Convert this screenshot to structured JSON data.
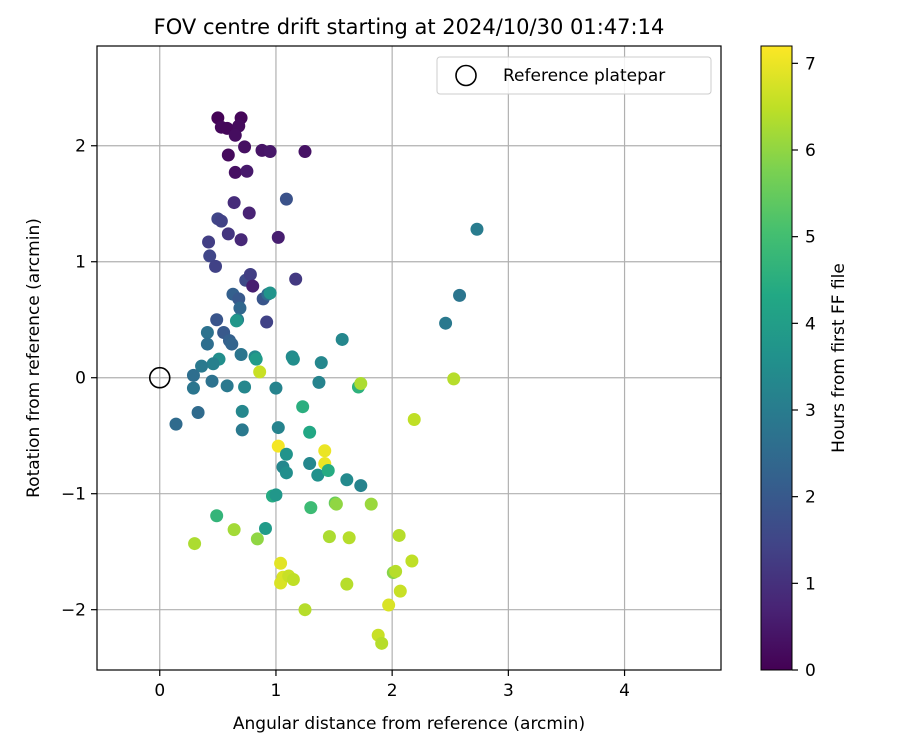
{
  "chart_data": {
    "type": "scatter",
    "title": "FOV centre drift starting at 2024/10/30 01:47:14",
    "xlabel": "Angular distance from reference (arcmin)",
    "ylabel": "Rotation from reference (arcmin)",
    "xlim": [
      -0.54,
      4.83
    ],
    "ylim": [
      -2.52,
      2.86
    ],
    "xticks": [
      0,
      1,
      2,
      3,
      4
    ],
    "yticks": [
      -2,
      -1,
      0,
      1,
      2
    ],
    "grid": true,
    "legend": {
      "position": "top-right",
      "entries": [
        "Reference platepar"
      ]
    },
    "reference_point": {
      "x": 0,
      "y": 0
    },
    "colorbar": {
      "label": "Hours from first FF file",
      "min": 0,
      "max": 7.2,
      "ticks": [
        0,
        1,
        2,
        3,
        4,
        5,
        6,
        7
      ],
      "colormap": "viridis"
    },
    "points": [
      {
        "x": 0.5,
        "y": 2.24,
        "c": 0.05
      },
      {
        "x": 0.7,
        "y": 2.24,
        "c": 0.1
      },
      {
        "x": 0.53,
        "y": 2.16,
        "c": 0.15
      },
      {
        "x": 0.58,
        "y": 2.15,
        "c": 0.12
      },
      {
        "x": 0.68,
        "y": 2.17,
        "c": 0.2
      },
      {
        "x": 0.65,
        "y": 2.09,
        "c": 0.25
      },
      {
        "x": 0.59,
        "y": 1.92,
        "c": 0.18
      },
      {
        "x": 0.73,
        "y": 1.99,
        "c": 0.3
      },
      {
        "x": 0.88,
        "y": 1.96,
        "c": 0.4
      },
      {
        "x": 0.95,
        "y": 1.95,
        "c": 0.45
      },
      {
        "x": 1.25,
        "y": 1.95,
        "c": 0.35
      },
      {
        "x": 0.65,
        "y": 1.77,
        "c": 0.3
      },
      {
        "x": 0.75,
        "y": 1.78,
        "c": 0.5
      },
      {
        "x": 0.64,
        "y": 1.51,
        "c": 0.9
      },
      {
        "x": 0.77,
        "y": 1.42,
        "c": 0.7
      },
      {
        "x": 1.09,
        "y": 1.54,
        "c": 1.8
      },
      {
        "x": 0.5,
        "y": 1.37,
        "c": 1.5
      },
      {
        "x": 0.53,
        "y": 1.35,
        "c": 1.4
      },
      {
        "x": 0.59,
        "y": 1.24,
        "c": 1.1
      },
      {
        "x": 0.7,
        "y": 1.19,
        "c": 0.8
      },
      {
        "x": 1.02,
        "y": 1.21,
        "c": 0.6
      },
      {
        "x": 0.42,
        "y": 1.17,
        "c": 1.3
      },
      {
        "x": 0.43,
        "y": 1.05,
        "c": 1.5
      },
      {
        "x": 0.48,
        "y": 0.96,
        "c": 1.4
      },
      {
        "x": 0.74,
        "y": 0.84,
        "c": 1.6
      },
      {
        "x": 0.78,
        "y": 0.89,
        "c": 1.3
      },
      {
        "x": 0.8,
        "y": 0.79,
        "c": 0.6
      },
      {
        "x": 1.17,
        "y": 0.85,
        "c": 1.2
      },
      {
        "x": 0.63,
        "y": 0.72,
        "c": 2.2
      },
      {
        "x": 0.68,
        "y": 0.68,
        "c": 2.0
      },
      {
        "x": 0.89,
        "y": 0.68,
        "c": 1.9
      },
      {
        "x": 0.93,
        "y": 0.72,
        "c": 2.5
      },
      {
        "x": 0.95,
        "y": 0.73,
        "c": 3.7
      },
      {
        "x": 0.69,
        "y": 0.6,
        "c": 2.4
      },
      {
        "x": 0.49,
        "y": 0.5,
        "c": 1.9
      },
      {
        "x": 0.67,
        "y": 0.5,
        "c": 3.0
      },
      {
        "x": 0.66,
        "y": 0.49,
        "c": 3.8
      },
      {
        "x": 0.92,
        "y": 0.48,
        "c": 1.4
      },
      {
        "x": 0.41,
        "y": 0.39,
        "c": 2.7
      },
      {
        "x": 0.55,
        "y": 0.39,
        "c": 2.0
      },
      {
        "x": 0.6,
        "y": 0.32,
        "c": 2.2
      },
      {
        "x": 0.62,
        "y": 0.29,
        "c": 2.3
      },
      {
        "x": 0.41,
        "y": 0.29,
        "c": 2.6
      },
      {
        "x": 0.7,
        "y": 0.2,
        "c": 2.8
      },
      {
        "x": 0.82,
        "y": 0.18,
        "c": 3.4
      },
      {
        "x": 0.83,
        "y": 0.16,
        "c": 3.9
      },
      {
        "x": 0.51,
        "y": 0.16,
        "c": 3.5
      },
      {
        "x": 0.46,
        "y": 0.12,
        "c": 3.1
      },
      {
        "x": 0.36,
        "y": 0.1,
        "c": 2.9
      },
      {
        "x": 0.29,
        "y": 0.02,
        "c": 2.6
      },
      {
        "x": 0.45,
        "y": -0.03,
        "c": 2.7
      },
      {
        "x": 0.58,
        "y": -0.07,
        "c": 2.9
      },
      {
        "x": 0.29,
        "y": -0.09,
        "c": 2.8
      },
      {
        "x": 0.86,
        "y": 0.05,
        "c": 6.6
      },
      {
        "x": 1.0,
        "y": -0.09,
        "c": 3.2
      },
      {
        "x": 0.73,
        "y": -0.08,
        "c": 3.3
      },
      {
        "x": 0.33,
        "y": -0.3,
        "c": 2.5
      },
      {
        "x": 0.14,
        "y": -0.4,
        "c": 2.5
      },
      {
        "x": 0.71,
        "y": -0.29,
        "c": 3.3
      },
      {
        "x": 0.71,
        "y": -0.45,
        "c": 2.9
      },
      {
        "x": 1.14,
        "y": 0.18,
        "c": 3.4
      },
      {
        "x": 1.15,
        "y": 0.16,
        "c": 3.5
      },
      {
        "x": 1.39,
        "y": 0.13,
        "c": 3.3
      },
      {
        "x": 1.57,
        "y": 0.33,
        "c": 3.3
      },
      {
        "x": 1.37,
        "y": -0.04,
        "c": 3.2
      },
      {
        "x": 1.71,
        "y": -0.08,
        "c": 4.6
      },
      {
        "x": 1.73,
        "y": -0.05,
        "c": 6.3
      },
      {
        "x": 1.23,
        "y": -0.25,
        "c": 4.5
      },
      {
        "x": 2.46,
        "y": 0.47,
        "c": 2.9
      },
      {
        "x": 2.58,
        "y": 0.71,
        "c": 2.8
      },
      {
        "x": 2.73,
        "y": 1.28,
        "c": 3.0
      },
      {
        "x": 2.53,
        "y": -0.01,
        "c": 6.4
      },
      {
        "x": 2.19,
        "y": -0.36,
        "c": 6.5
      },
      {
        "x": 1.02,
        "y": -0.43,
        "c": 3.2
      },
      {
        "x": 1.29,
        "y": -0.47,
        "c": 4.3
      },
      {
        "x": 1.02,
        "y": -0.59,
        "c": 7.1
      },
      {
        "x": 1.42,
        "y": -0.63,
        "c": 7.0
      },
      {
        "x": 1.42,
        "y": -0.74,
        "c": 7.0
      },
      {
        "x": 1.09,
        "y": -0.66,
        "c": 3.7
      },
      {
        "x": 1.06,
        "y": -0.77,
        "c": 3.3
      },
      {
        "x": 1.09,
        "y": -0.82,
        "c": 3.5
      },
      {
        "x": 1.29,
        "y": -0.74,
        "c": 3.3
      },
      {
        "x": 1.36,
        "y": -0.84,
        "c": 3.6
      },
      {
        "x": 1.45,
        "y": -0.8,
        "c": 4.4
      },
      {
        "x": 1.61,
        "y": -0.88,
        "c": 3.4
      },
      {
        "x": 1.73,
        "y": -0.93,
        "c": 3.2
      },
      {
        "x": 1.51,
        "y": -1.08,
        "c": 5.5
      },
      {
        "x": 1.52,
        "y": -1.09,
        "c": 6.0
      },
      {
        "x": 1.82,
        "y": -1.09,
        "c": 6.1
      },
      {
        "x": 1.3,
        "y": -1.12,
        "c": 4.9
      },
      {
        "x": 0.97,
        "y": -1.02,
        "c": 4.4
      },
      {
        "x": 1.0,
        "y": -1.01,
        "c": 3.8
      },
      {
        "x": 0.49,
        "y": -1.19,
        "c": 4.7
      },
      {
        "x": 0.64,
        "y": -1.31,
        "c": 6.2
      },
      {
        "x": 0.91,
        "y": -1.3,
        "c": 3.9
      },
      {
        "x": 0.84,
        "y": -1.39,
        "c": 6.0
      },
      {
        "x": 0.3,
        "y": -1.43,
        "c": 6.3
      },
      {
        "x": 1.46,
        "y": -1.37,
        "c": 6.3
      },
      {
        "x": 1.63,
        "y": -1.38,
        "c": 6.4
      },
      {
        "x": 2.06,
        "y": -1.36,
        "c": 6.4
      },
      {
        "x": 1.04,
        "y": -1.6,
        "c": 6.9
      },
      {
        "x": 2.17,
        "y": -1.58,
        "c": 6.5
      },
      {
        "x": 2.01,
        "y": -1.68,
        "c": 5.9
      },
      {
        "x": 2.03,
        "y": -1.67,
        "c": 6.4
      },
      {
        "x": 1.04,
        "y": -1.77,
        "c": 6.8
      },
      {
        "x": 1.06,
        "y": -1.72,
        "c": 6.8
      },
      {
        "x": 1.11,
        "y": -1.71,
        "c": 6.6
      },
      {
        "x": 1.15,
        "y": -1.74,
        "c": 6.5
      },
      {
        "x": 1.61,
        "y": -1.78,
        "c": 6.4
      },
      {
        "x": 2.07,
        "y": -1.84,
        "c": 6.6
      },
      {
        "x": 1.97,
        "y": -1.96,
        "c": 6.8
      },
      {
        "x": 1.25,
        "y": -2.0,
        "c": 6.4
      },
      {
        "x": 1.88,
        "y": -2.22,
        "c": 6.6
      },
      {
        "x": 1.91,
        "y": -2.29,
        "c": 6.4
      }
    ]
  }
}
